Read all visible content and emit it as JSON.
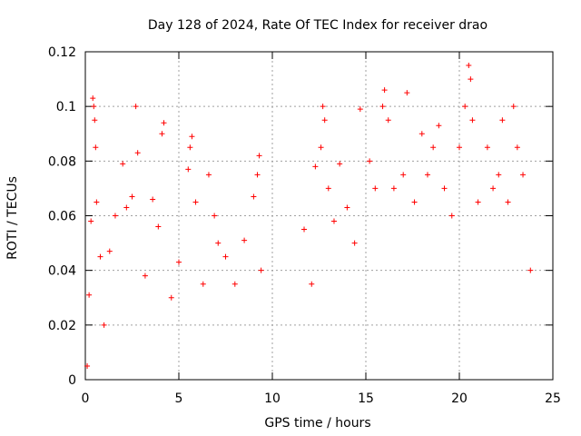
{
  "chart_data": {
    "type": "scatter",
    "title": "Day 128 of 2024, Rate Of TEC Index for receiver drao",
    "xlabel": "GPS time / hours",
    "ylabel": "ROTI / TECUs",
    "xlim": [
      0,
      25
    ],
    "ylim": [
      0,
      0.12
    ],
    "x_ticks": [
      0,
      5,
      10,
      15,
      20,
      25
    ],
    "x_tick_labels": [
      "0",
      "5",
      "10",
      "15",
      "20",
      "25"
    ],
    "y_ticks": [
      0,
      0.02,
      0.04,
      0.06,
      0.08,
      0.1,
      0.12
    ],
    "y_tick_labels": [
      "0",
      "0.02",
      "0.04",
      "0.06",
      "0.08",
      "0.1",
      "0.12"
    ],
    "grid": true,
    "marker": "+",
    "marker_color": "#ff0000",
    "data_gap": [
      9.6,
      11.5
    ],
    "series": [
      {
        "points": [
          [
            0.1,
            0.005
          ],
          [
            0.2,
            0.031
          ],
          [
            0.3,
            0.058
          ],
          [
            0.4,
            0.103
          ],
          [
            0.45,
            0.1
          ],
          [
            0.5,
            0.095
          ],
          [
            0.55,
            0.085
          ],
          [
            0.6,
            0.065
          ],
          [
            0.8,
            0.045
          ],
          [
            1.0,
            0.02
          ],
          [
            1.3,
            0.047
          ],
          [
            1.6,
            0.06
          ],
          [
            2.0,
            0.079
          ],
          [
            2.2,
            0.063
          ],
          [
            2.5,
            0.067
          ],
          [
            2.7,
            0.1
          ],
          [
            2.8,
            0.083
          ],
          [
            3.2,
            0.038
          ],
          [
            3.6,
            0.066
          ],
          [
            3.9,
            0.056
          ],
          [
            4.1,
            0.09
          ],
          [
            4.2,
            0.094
          ],
          [
            4.6,
            0.03
          ],
          [
            5.0,
            0.043
          ],
          [
            5.5,
            0.077
          ],
          [
            5.6,
            0.085
          ],
          [
            5.7,
            0.089
          ],
          [
            5.9,
            0.065
          ],
          [
            6.3,
            0.035
          ],
          [
            6.6,
            0.075
          ],
          [
            6.9,
            0.06
          ],
          [
            7.1,
            0.05
          ],
          [
            7.5,
            0.045
          ],
          [
            8.0,
            0.035
          ],
          [
            8.5,
            0.051
          ],
          [
            9.0,
            0.067
          ],
          [
            9.2,
            0.075
          ],
          [
            9.3,
            0.082
          ],
          [
            9.4,
            0.04
          ],
          [
            11.7,
            0.055
          ],
          [
            12.1,
            0.035
          ],
          [
            12.3,
            0.078
          ],
          [
            12.6,
            0.085
          ],
          [
            12.7,
            0.1
          ],
          [
            12.8,
            0.095
          ],
          [
            13.0,
            0.07
          ],
          [
            13.3,
            0.058
          ],
          [
            13.6,
            0.079
          ],
          [
            14.0,
            0.063
          ],
          [
            14.4,
            0.05
          ],
          [
            14.7,
            0.099
          ],
          [
            15.2,
            0.08
          ],
          [
            15.5,
            0.07
          ],
          [
            15.9,
            0.1
          ],
          [
            16.0,
            0.106
          ],
          [
            16.2,
            0.095
          ],
          [
            16.5,
            0.07
          ],
          [
            17.0,
            0.075
          ],
          [
            17.2,
            0.105
          ],
          [
            17.6,
            0.065
          ],
          [
            18.0,
            0.09
          ],
          [
            18.3,
            0.075
          ],
          [
            18.6,
            0.085
          ],
          [
            18.9,
            0.093
          ],
          [
            19.2,
            0.07
          ],
          [
            19.6,
            0.06
          ],
          [
            20.0,
            0.085
          ],
          [
            20.3,
            0.1
          ],
          [
            20.5,
            0.115
          ],
          [
            20.6,
            0.11
          ],
          [
            20.7,
            0.095
          ],
          [
            21.0,
            0.065
          ],
          [
            21.5,
            0.085
          ],
          [
            21.8,
            0.07
          ],
          [
            22.1,
            0.075
          ],
          [
            22.3,
            0.095
          ],
          [
            22.6,
            0.065
          ],
          [
            22.9,
            0.1
          ],
          [
            23.1,
            0.085
          ],
          [
            23.4,
            0.075
          ],
          [
            23.8,
            0.04
          ]
        ]
      }
    ]
  }
}
